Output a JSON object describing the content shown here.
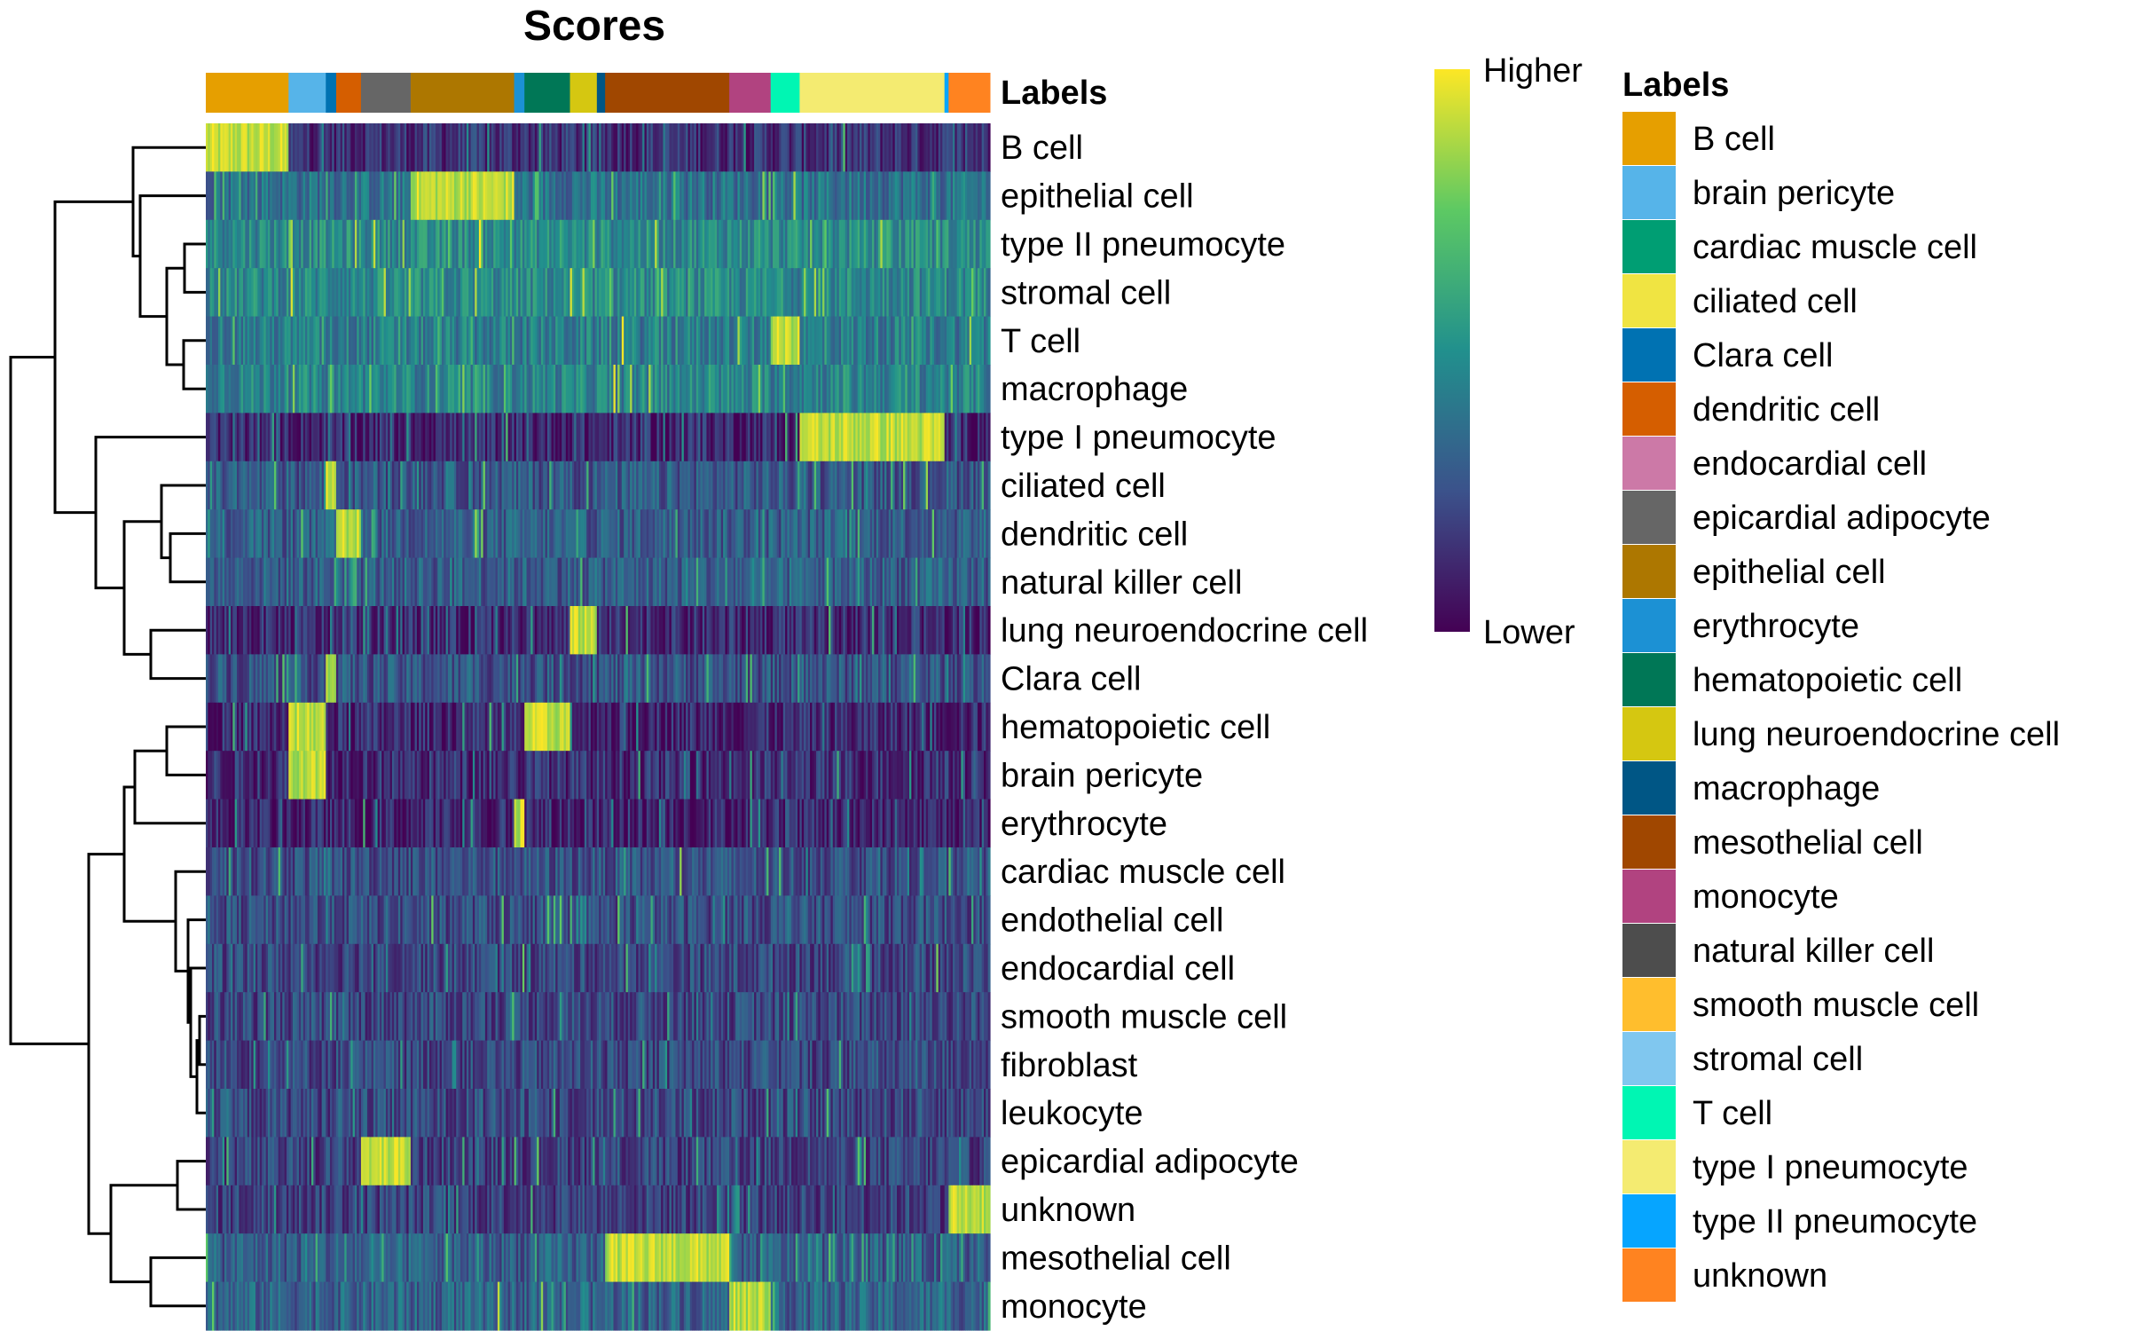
{
  "chart_data": {
    "type": "heatmap",
    "title": "Scores",
    "annotation_title": "Labels",
    "colorbar": {
      "high_label": "Higher",
      "low_label": "Lower",
      "colors": [
        "#440154",
        "#3b528b",
        "#21908d",
        "#5dc963",
        "#fde725"
      ]
    },
    "column_groups": [
      {
        "label": "B cell",
        "n": 40,
        "color": "#E69F00"
      },
      {
        "label": "brain pericyte",
        "n": 18,
        "color": "#56B4E9"
      },
      {
        "label": "Clara cell",
        "n": 5,
        "color": "#0072B2"
      },
      {
        "label": "dendritic cell",
        "n": 12,
        "color": "#D55E00"
      },
      {
        "label": "epicardial adipocyte",
        "n": 24,
        "color": "#666666"
      },
      {
        "label": "epithelial cell",
        "n": 50,
        "color": "#AD7700"
      },
      {
        "label": "erythrocyte",
        "n": 5,
        "color": "#1C91D4"
      },
      {
        "label": "hematopoietic cell",
        "n": 22,
        "color": "#007756"
      },
      {
        "label": "lung neuroendocrine cell",
        "n": 13,
        "color": "#D5C711"
      },
      {
        "label": "macrophage",
        "n": 4,
        "color": "#005685"
      },
      {
        "label": "mesothelial cell",
        "n": 60,
        "color": "#A04700"
      },
      {
        "label": "monocyte",
        "n": 20,
        "color": "#B14380"
      },
      {
        "label": "T cell",
        "n": 14,
        "color": "#00F6B3"
      },
      {
        "label": "type I pneumocyte",
        "n": 70,
        "color": "#F4EB71"
      },
      {
        "label": "type II pneumocyte",
        "n": 2,
        "color": "#06A5FF"
      },
      {
        "label": "unknown",
        "n": 20,
        "color": "#FF8320"
      }
    ],
    "rows": [
      {
        "label": "B cell",
        "base": 0.15,
        "hi": [
          "B cell"
        ]
      },
      {
        "label": "epithelial cell",
        "base": 0.38,
        "hi": [
          "epithelial cell"
        ]
      },
      {
        "label": "type II pneumocyte",
        "base": 0.48,
        "hi": []
      },
      {
        "label": "stromal cell",
        "base": 0.47,
        "hi": []
      },
      {
        "label": "T cell",
        "base": 0.42,
        "hi": [
          "T cell"
        ]
      },
      {
        "label": "macrophage",
        "base": 0.45,
        "hi": []
      },
      {
        "label": "type I pneumocyte",
        "base": 0.12,
        "hi": [
          "type I pneumocyte"
        ]
      },
      {
        "label": "ciliated cell",
        "base": 0.28,
        "hi": [
          "Clara cell"
        ]
      },
      {
        "label": "dendritic cell",
        "base": 0.3,
        "hi": [
          "dendritic cell"
        ]
      },
      {
        "label": "natural killer cell",
        "base": 0.3,
        "hi": []
      },
      {
        "label": "lung neuroendocrine cell",
        "base": 0.12,
        "hi": [
          "lung neuroendocrine cell"
        ]
      },
      {
        "label": "Clara cell",
        "base": 0.26,
        "hi": [
          "Clara cell"
        ]
      },
      {
        "label": "hematopoietic cell",
        "base": 0.12,
        "hi": [
          "hematopoietic cell",
          "brain pericyte"
        ]
      },
      {
        "label": "brain pericyte",
        "base": 0.14,
        "hi": [
          "brain pericyte"
        ]
      },
      {
        "label": "erythrocyte",
        "base": 0.1,
        "hi": [
          "erythrocyte"
        ]
      },
      {
        "label": "cardiac muscle cell",
        "base": 0.25,
        "hi": []
      },
      {
        "label": "endothelial cell",
        "base": 0.24,
        "hi": []
      },
      {
        "label": "endocardial cell",
        "base": 0.22,
        "hi": []
      },
      {
        "label": "smooth muscle cell",
        "base": 0.22,
        "hi": []
      },
      {
        "label": "fibroblast",
        "base": 0.22,
        "hi": []
      },
      {
        "label": "leukocyte",
        "base": 0.22,
        "hi": []
      },
      {
        "label": "epicardial adipocyte",
        "base": 0.2,
        "hi": [
          "epicardial adipocyte"
        ]
      },
      {
        "label": "unknown",
        "base": 0.2,
        "hi": [
          "unknown"
        ]
      },
      {
        "label": "mesothelial cell",
        "base": 0.3,
        "hi": [
          "mesothelial cell"
        ]
      },
      {
        "label": "monocyte",
        "base": 0.32,
        "hi": [
          "monocyte"
        ]
      }
    ],
    "legend": {
      "title": "Labels",
      "entries": [
        {
          "label": "B cell",
          "color": "#E69F00"
        },
        {
          "label": "brain pericyte",
          "color": "#56B4E9"
        },
        {
          "label": "cardiac muscle cell",
          "color": "#009E73"
        },
        {
          "label": "ciliated cell",
          "color": "#F0E442"
        },
        {
          "label": "Clara cell",
          "color": "#0072B2"
        },
        {
          "label": "dendritic cell",
          "color": "#D55E00"
        },
        {
          "label": "endocardial cell",
          "color": "#CC79A7"
        },
        {
          "label": "epicardial adipocyte",
          "color": "#666666"
        },
        {
          "label": "epithelial cell",
          "color": "#AD7700"
        },
        {
          "label": "erythrocyte",
          "color": "#1C91D4"
        },
        {
          "label": "hematopoietic cell",
          "color": "#007756"
        },
        {
          "label": "lung neuroendocrine cell",
          "color": "#D5C711"
        },
        {
          "label": "macrophage",
          "color": "#005685"
        },
        {
          "label": "mesothelial cell",
          "color": "#A04700"
        },
        {
          "label": "monocyte",
          "color": "#B14380"
        },
        {
          "label": "natural killer cell",
          "color": "#4D4D4D"
        },
        {
          "label": "smooth muscle cell",
          "color": "#FFBE2D"
        },
        {
          "label": "stromal cell",
          "color": "#80C7EF"
        },
        {
          "label": "T cell",
          "color": "#00F6B3"
        },
        {
          "label": "type I pneumocyte",
          "color": "#F4EB71"
        },
        {
          "label": "type II pneumocyte",
          "color": "#06A5FF"
        },
        {
          "label": "unknown",
          "color": "#FF8320"
        }
      ]
    }
  }
}
